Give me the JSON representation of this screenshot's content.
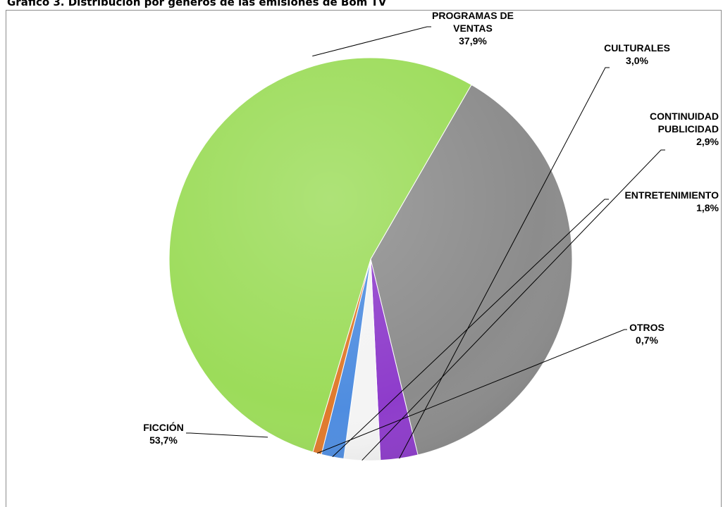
{
  "title": "Gráfico 3. Distribución por géneros de las emisiones de Bom TV",
  "chart_data": {
    "type": "pie",
    "title": "Gráfico 3. Distribución por géneros de las emisiones de Bom TV",
    "slices": [
      {
        "name": "PROGRAMAS DE VENTAS",
        "name_lines": [
          "PROGRAMAS DE",
          "VENTAS"
        ],
        "value": 37.9,
        "label": "37,9%",
        "color": "#8c8c8c"
      },
      {
        "name": "CULTURALES",
        "name_lines": [
          "CULTURALES"
        ],
        "value": 3.0,
        "label": "3,0%",
        "color": "#8e3ccb"
      },
      {
        "name": "CONTINUIDAD PUBLICIDAD",
        "name_lines": [
          "CONTINUIDAD",
          "PUBLICIDAD"
        ],
        "value": 2.9,
        "label": "2,9%",
        "color": "#f4f4f4"
      },
      {
        "name": "ENTRETENIMIENTO",
        "name_lines": [
          "ENTRETENIMIENTO"
        ],
        "value": 1.8,
        "label": "1,8%",
        "color": "#4f8de0"
      },
      {
        "name": "OTROS",
        "name_lines": [
          "OTROS"
        ],
        "value": 0.7,
        "label": "0,7%",
        "color": "#e07a2c"
      },
      {
        "name": "FICCIÓN",
        "name_lines": [
          "FICCIÓN"
        ],
        "value": 53.7,
        "label": "53,7%",
        "color": "#9cdc5a"
      }
    ],
    "legend": "none"
  }
}
